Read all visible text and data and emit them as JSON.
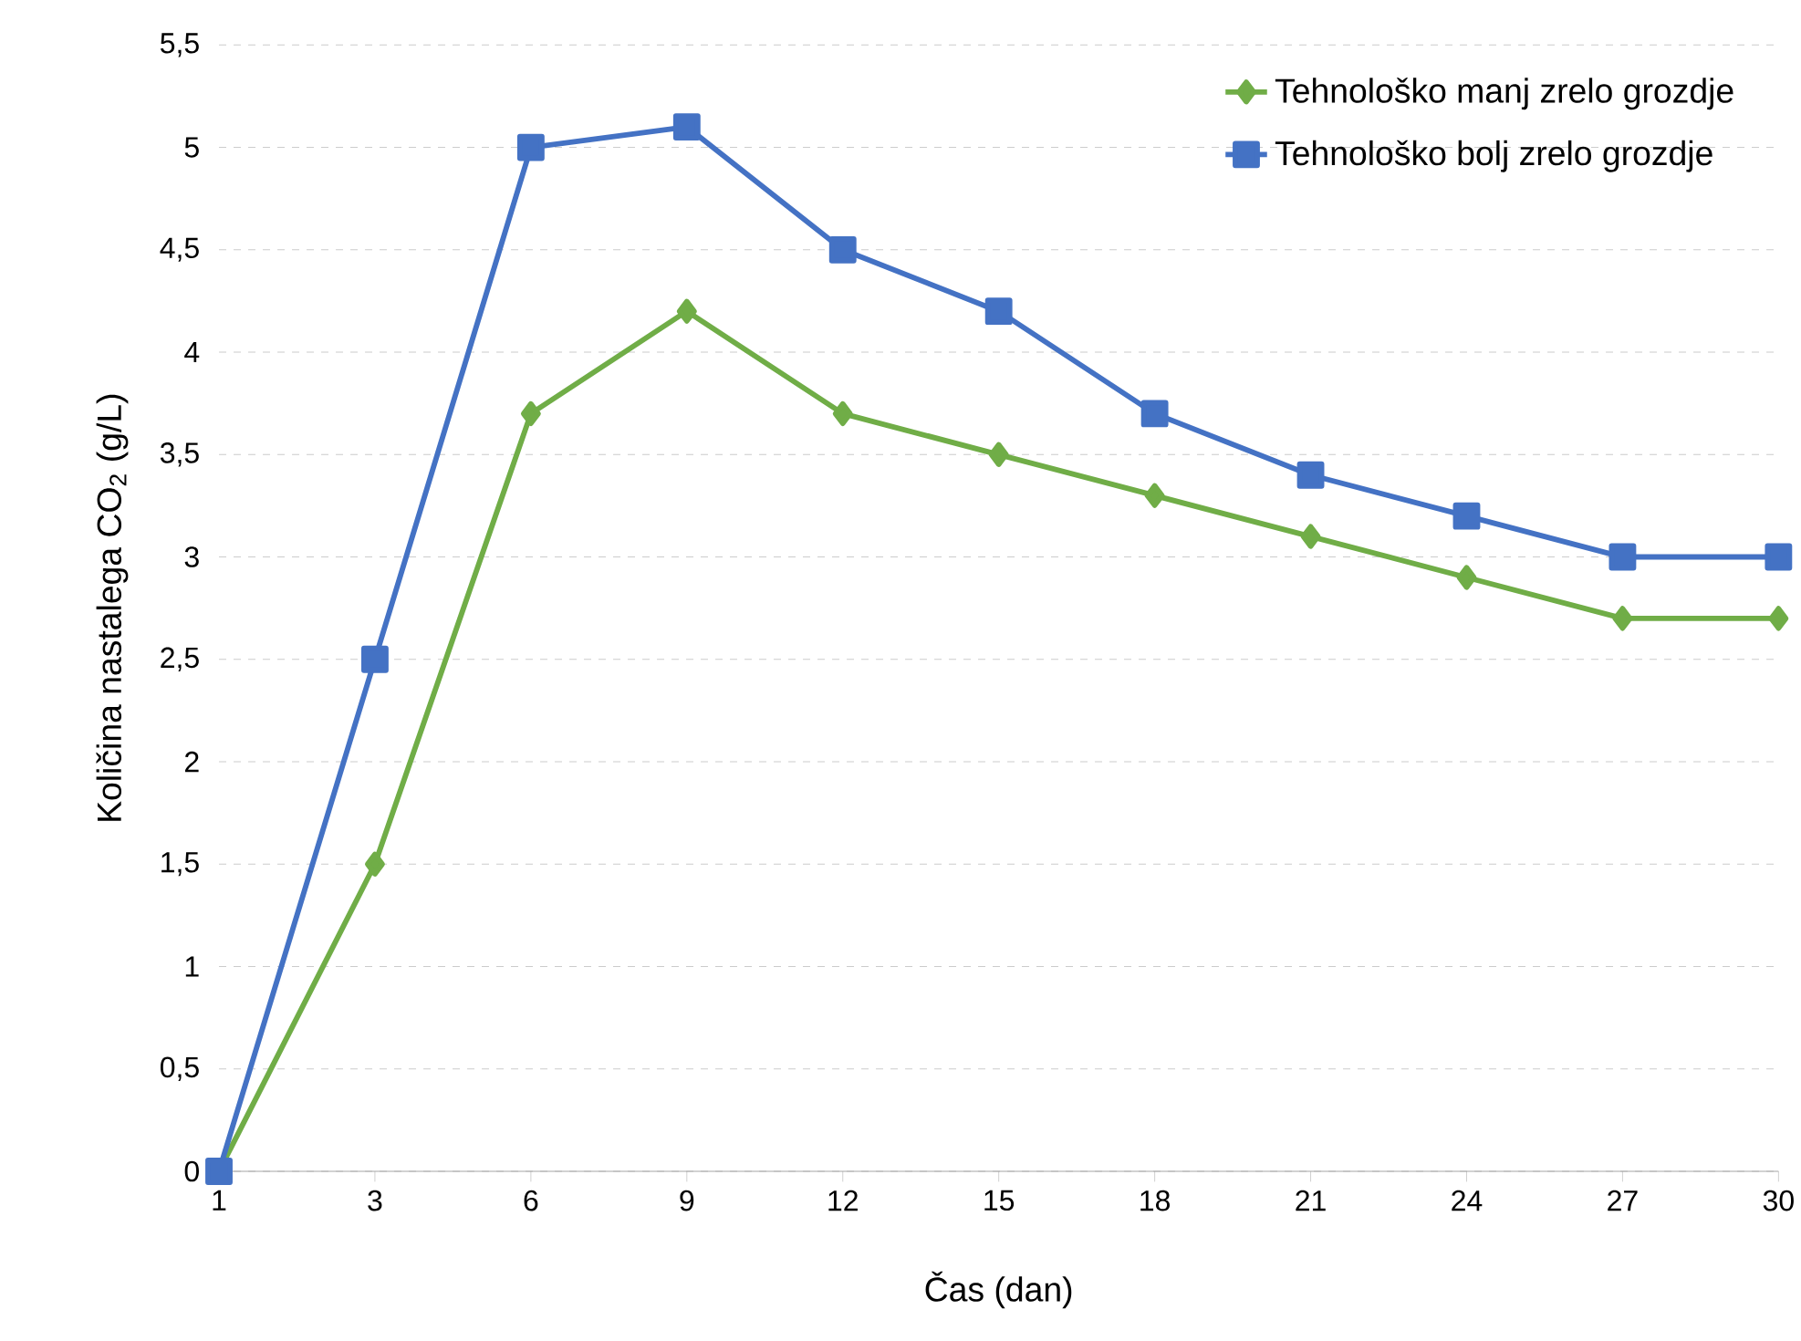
{
  "chart_data": {
    "type": "line",
    "xlabel": "Čas (dan)",
    "ylabel": "Količina nastalega CO$_{2}$ (g/L)",
    "categories": [
      "1",
      "3",
      "6",
      "9",
      "12",
      "15",
      "18",
      "21",
      "24",
      "27",
      "30"
    ],
    "series": [
      {
        "name": "Tehnološko manj zrelo grozdje",
        "color": "#70ad47",
        "marker": "diamond",
        "values": [
          0,
          1.5,
          3.7,
          4.2,
          3.7,
          3.5,
          3.3,
          3.1,
          2.9,
          2.7,
          2.7
        ]
      },
      {
        "name": "Tehnološko bolj zrelo grozdje",
        "color": "#4472c4",
        "marker": "square",
        "values": [
          0,
          2.5,
          5.0,
          5.1,
          4.5,
          4.2,
          3.7,
          3.4,
          3.2,
          3.0,
          3.0
        ]
      }
    ],
    "ylim": [
      0,
      5.5
    ],
    "yticks": [
      0,
      {
        "value": 0.5,
        "label": "0,5"
      },
      1,
      {
        "value": 1.5,
        "label": "1,5"
      },
      2,
      {
        "value": 2.5,
        "label": "2,5"
      },
      3,
      {
        "value": 3.5,
        "label": "3,5"
      },
      4,
      {
        "value": 4.5,
        "label": "4,5"
      },
      5,
      {
        "value": 5.5,
        "label": "5,5"
      }
    ],
    "grid": "y",
    "legend": "top right",
    "line_style": "solid"
  }
}
